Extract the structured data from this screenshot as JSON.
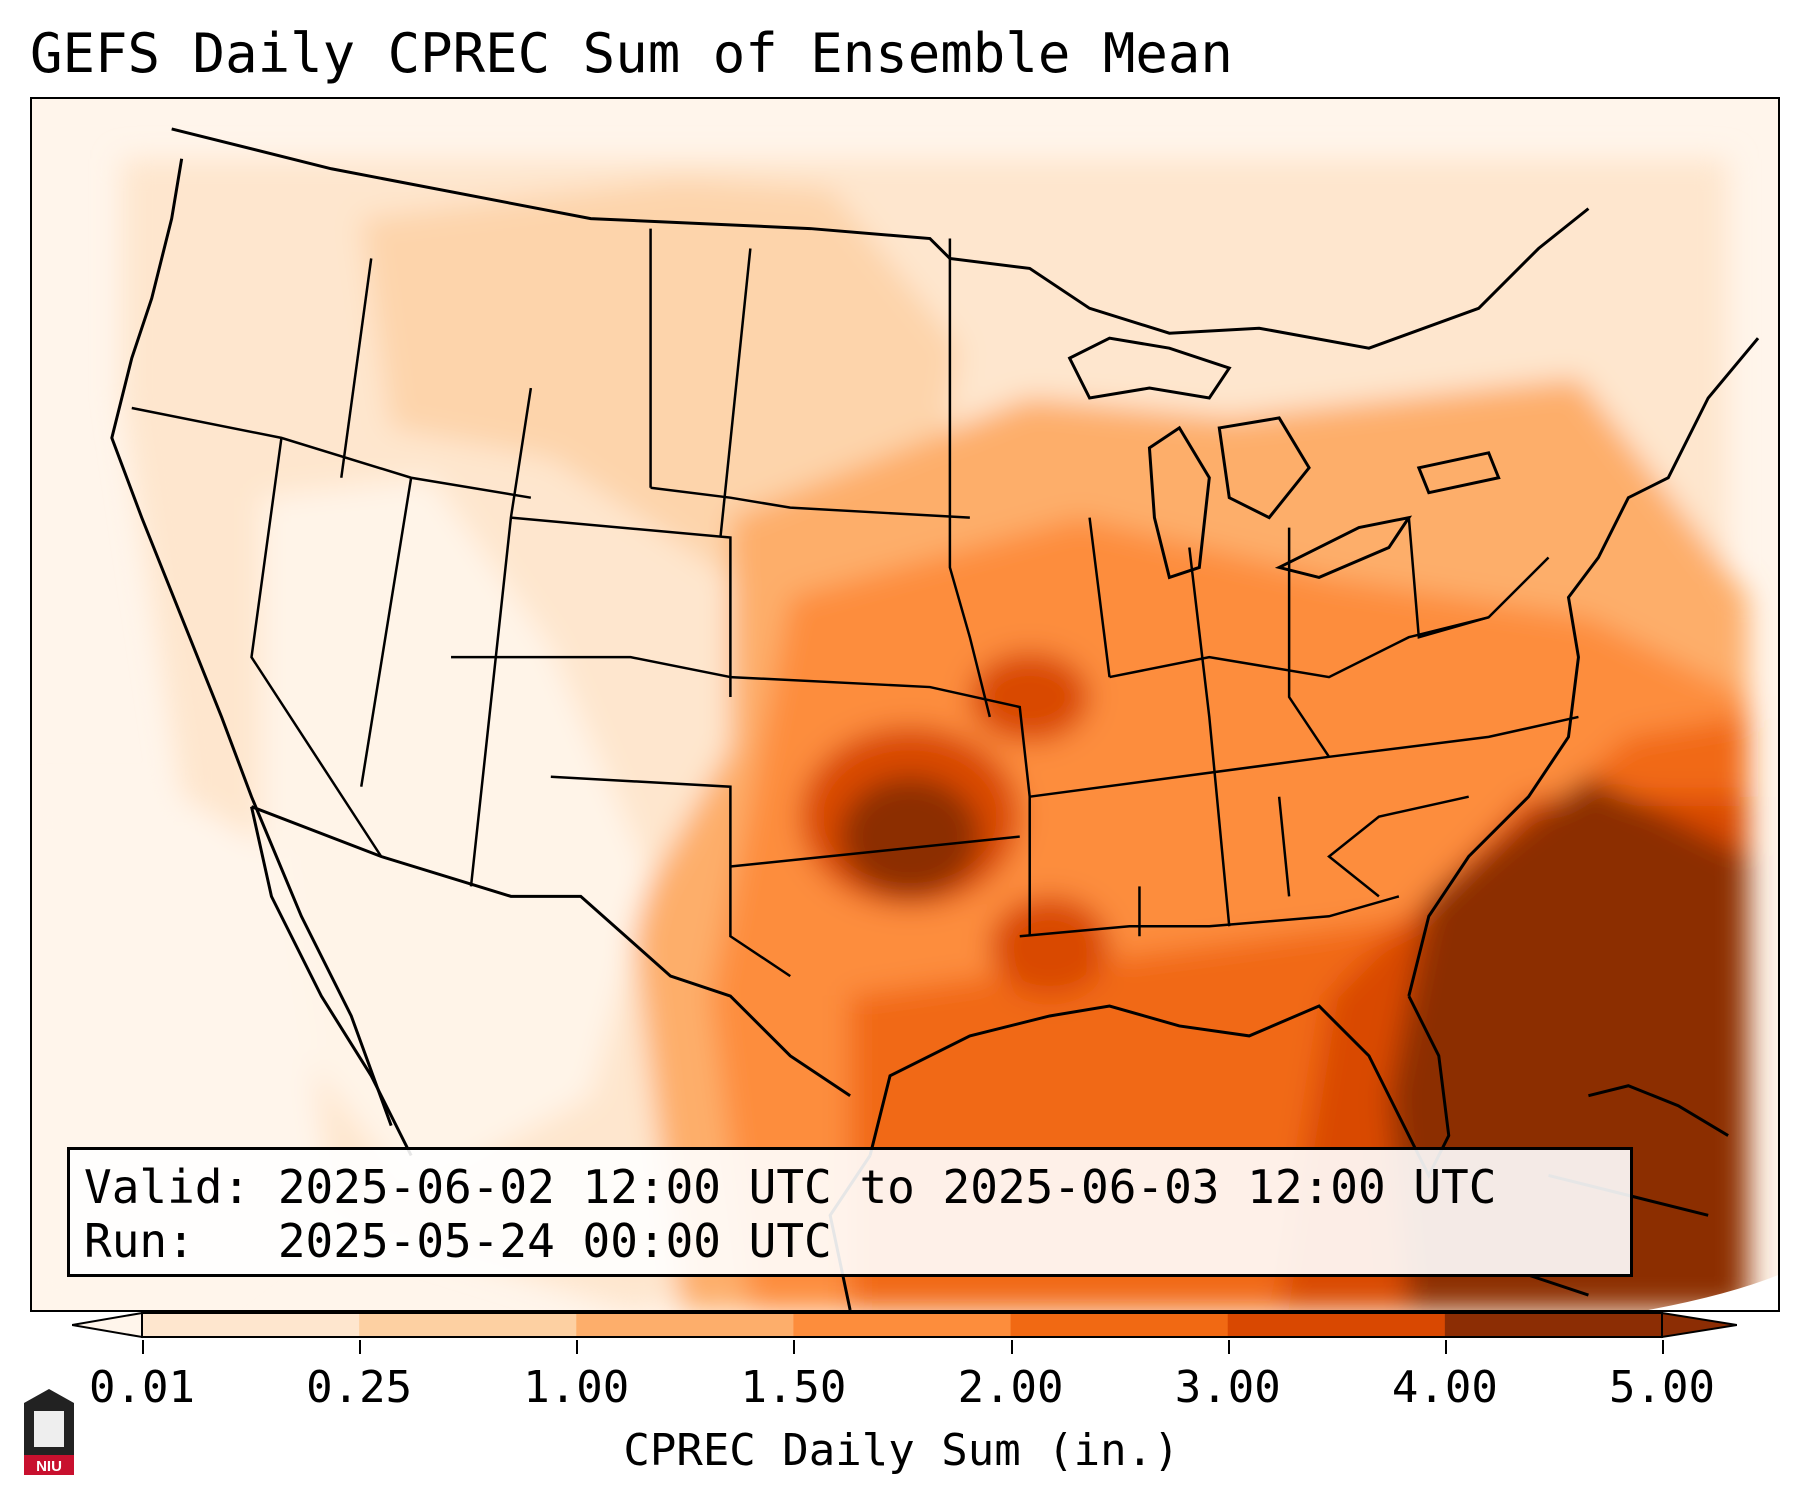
{
  "title": "GEFS Daily CPREC Sum of Ensemble Mean",
  "info": {
    "valid_line": "Valid: 2025-06-02 12:00 UTC to 2025-06-03 12:00 UTC",
    "run_line": "Run:   2025-05-24 00:00 UTC"
  },
  "colorbar": {
    "label": "CPREC Daily Sum (in.)",
    "ticks": [
      "0.01",
      "0.25",
      "1.00",
      "1.50",
      "2.00",
      "3.00",
      "4.00",
      "5.00"
    ],
    "colors": [
      "#fff5eb",
      "#fee6ce",
      "#fdd0a2",
      "#fdae6b",
      "#fd8d3c",
      "#f16913",
      "#d94801",
      "#8c2d04"
    ],
    "extend": "both"
  },
  "logo": {
    "text": "NIU"
  },
  "colors": {
    "land_outline": "#000000",
    "background": "#ffffff",
    "low_precip": "#fff5eb",
    "max_precip": "#8c2d04"
  }
}
